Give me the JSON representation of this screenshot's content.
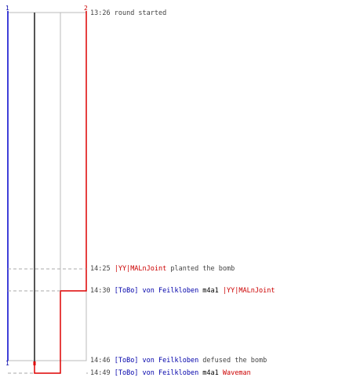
{
  "axis": {
    "left_label": "1",
    "right_label": "2",
    "bottom_label": "1"
  },
  "colors": {
    "team_blue": "#0000cc",
    "team_red": "#dd0000",
    "grid": "#bbbbbb",
    "text": "#444444"
  },
  "events": [
    {
      "time": "13:26",
      "segments": [
        {
          "text": "round started",
          "style": "txt"
        }
      ]
    },
    {
      "time": "14:25",
      "segments": [
        {
          "text": "|YY|MALnJoint",
          "style": "red"
        },
        {
          "text": " planted the bomb",
          "style": "txt"
        }
      ]
    },
    {
      "time": "14:30",
      "segments": [
        {
          "text": "[ToBo] von Feilkloben",
          "style": "blue"
        },
        {
          "text": " m4a1 ",
          "style": "dark"
        },
        {
          "text": "|YY|MALnJoint",
          "style": "red"
        }
      ]
    },
    {
      "time": "14:46",
      "segments": [
        {
          "text": "[ToBo] von Feilkloben",
          "style": "blue"
        },
        {
          "text": " defused the bomb",
          "style": "txt"
        }
      ]
    },
    {
      "time": "14:49",
      "segments": [
        {
          "text": "[ToBo] von Feilkloben",
          "style": "blue"
        },
        {
          "text": " m4a1 ",
          "style": "dark"
        },
        {
          "text": "Waveman",
          "style": "red"
        }
      ]
    }
  ]
}
